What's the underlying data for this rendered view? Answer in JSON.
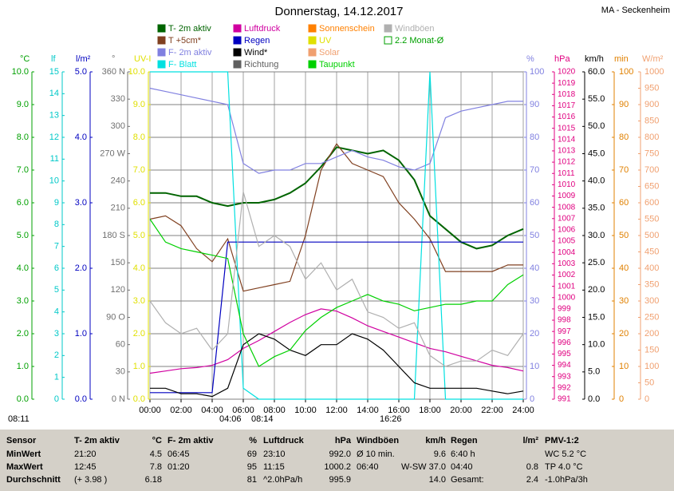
{
  "header": {
    "title": "Donnerstag, 14.12.2017",
    "station": "MA - Seckenheim"
  },
  "chart_data": {
    "type": "line",
    "x": [
      0,
      1,
      2,
      3,
      4,
      5,
      6,
      7,
      8,
      9,
      10,
      11,
      12,
      13,
      14,
      15,
      16,
      17,
      18,
      19,
      20,
      21,
      22,
      23,
      24
    ],
    "xlim": [
      0,
      24
    ],
    "xticks": [
      {
        "value": 0,
        "label": "00:00"
      },
      {
        "value": 2,
        "label": "02:00"
      },
      {
        "value": 4,
        "label": "04:00"
      },
      {
        "value": 6,
        "label": "06:00"
      },
      {
        "value": 8,
        "label": "08:00"
      },
      {
        "value": 10,
        "label": "10:00"
      },
      {
        "value": 12,
        "label": "12:00"
      },
      {
        "value": 14,
        "label": "14:00"
      },
      {
        "value": 16,
        "label": "16:00"
      },
      {
        "value": 18,
        "label": "18:00"
      },
      {
        "value": 20,
        "label": "20:00"
      },
      {
        "value": 22,
        "label": "22:00"
      },
      {
        "value": 24,
        "label": "24:00"
      }
    ],
    "grid": true,
    "axes": [
      {
        "unit": "°C",
        "color": "#00a000",
        "lim": [
          0,
          10
        ],
        "ticks": [
          {
            "value": 0,
            "label": "0.0"
          },
          {
            "value": 1,
            "label": "1.0"
          },
          {
            "value": 2,
            "label": "2.0"
          },
          {
            "value": 3,
            "label": "3.0"
          },
          {
            "value": 4,
            "label": "4.0"
          },
          {
            "value": 5,
            "label": "5.0"
          },
          {
            "value": 6,
            "label": "6.0"
          },
          {
            "value": 7,
            "label": "7.0"
          },
          {
            "value": 8,
            "label": "8.0"
          },
          {
            "value": 9,
            "label": "9.0"
          },
          {
            "value": 10,
            "label": "10.0"
          }
        ]
      },
      {
        "unit": "lf",
        "color": "#00c8c8",
        "lim": [
          0,
          15
        ],
        "ticks": [
          0,
          1,
          2,
          3,
          4,
          5,
          6,
          7,
          8,
          9,
          10,
          11,
          12,
          13,
          14,
          15
        ]
      },
      {
        "unit": "l/m²",
        "color": "#0000c0",
        "lim": [
          0,
          5
        ],
        "ticks": [
          {
            "value": 0,
            "label": "0.0"
          },
          {
            "value": 1,
            "label": "1.0"
          },
          {
            "value": 2,
            "label": "2.0"
          },
          {
            "value": 3,
            "label": "3.0"
          },
          {
            "value": 4,
            "label": "4.0"
          },
          {
            "value": 5,
            "label": "5.0"
          }
        ]
      },
      {
        "unit": "°",
        "color": "#707070",
        "lim": [
          0,
          360
        ],
        "ticks": [
          {
            "value": 0,
            "label": "0 N"
          },
          30,
          60,
          {
            "value": 90,
            "label": "90 O"
          },
          120,
          150,
          {
            "value": 180,
            "label": "180 S"
          },
          210,
          240,
          {
            "value": 270,
            "label": "270 W"
          },
          300,
          330,
          {
            "value": 360,
            "label": "360 N"
          }
        ]
      },
      {
        "unit": "UV-I",
        "color": "#e0e000",
        "lim": [
          0,
          10
        ],
        "ticks": [
          {
            "value": 0,
            "label": "0.0"
          },
          {
            "value": 1,
            "label": "1.0"
          },
          {
            "value": 2,
            "label": "2.0"
          },
          {
            "value": 3,
            "label": "3.0"
          },
          {
            "value": 4,
            "label": "4.0"
          },
          {
            "value": 5,
            "label": "5.0"
          },
          {
            "value": 6,
            "label": "6.0"
          },
          {
            "value": 7,
            "label": "7.0"
          },
          {
            "value": 8,
            "label": "8.0"
          },
          {
            "value": 9,
            "label": "9.0"
          },
          {
            "value": 10,
            "label": "10.0"
          }
        ]
      },
      {
        "unit": "%",
        "color": "#8080e0",
        "lim": [
          0,
          100
        ],
        "ticks": [
          0,
          10,
          20,
          30,
          40,
          50,
          60,
          70,
          80,
          90,
          100
        ]
      },
      {
        "unit": "hPa",
        "color": "#e00080",
        "lim": [
          991,
          1020
        ],
        "ticks": [
          991,
          992,
          993,
          994,
          995,
          996,
          997,
          998,
          999,
          1000,
          1001,
          1002,
          1003,
          1004,
          1005,
          1006,
          1007,
          1008,
          1009,
          1010,
          1011,
          1012,
          1013,
          1014,
          1015,
          1016,
          1017,
          1018,
          1019,
          1020
        ]
      },
      {
        "unit": "km/h",
        "color": "#000000",
        "lim": [
          0,
          60
        ],
        "ticks": [
          {
            "value": 0,
            "label": "0.0"
          },
          {
            "value": 5,
            "label": "5.0"
          },
          {
            "value": 10,
            "label": "10.0"
          },
          {
            "value": 15,
            "label": "15.0"
          },
          {
            "value": 20,
            "label": "20.0"
          },
          {
            "value": 25,
            "label": "25.0"
          },
          {
            "value": 30,
            "label": "30.0"
          },
          {
            "value": 35,
            "label": "35.0"
          },
          {
            "value": 40,
            "label": "40.0"
          },
          {
            "value": 45,
            "label": "45.0"
          },
          {
            "value": 50,
            "label": "50.0"
          },
          {
            "value": 55,
            "label": "55.0"
          },
          {
            "value": 60,
            "label": "60.0"
          }
        ]
      },
      {
        "unit": "min",
        "color": "#e08000",
        "lim": [
          0,
          100
        ],
        "ticks": [
          0,
          10,
          20,
          30,
          40,
          50,
          60,
          70,
          80,
          90,
          100
        ]
      },
      {
        "unit": "W/m²",
        "color": "#f0a070",
        "lim": [
          0,
          1000
        ],
        "ticks": [
          0,
          50,
          100,
          150,
          200,
          250,
          300,
          350,
          400,
          450,
          500,
          550,
          600,
          650,
          700,
          750,
          800,
          850,
          900,
          950,
          1000
        ]
      }
    ],
    "series": [
      {
        "name": "T- 2m aktiv",
        "color": "#006400",
        "axis": 0,
        "values": [
          6.3,
          6.3,
          6.2,
          6.2,
          6.0,
          5.9,
          6.0,
          6.0,
          6.1,
          6.3,
          6.6,
          7.1,
          7.7,
          7.6,
          7.5,
          7.6,
          7.3,
          6.7,
          5.6,
          5.2,
          4.8,
          4.6,
          4.7,
          5.0,
          5.2
        ]
      },
      {
        "name": "T +5cm*",
        "color": "#804020",
        "axis": 0,
        "values": [
          5.5,
          5.6,
          5.3,
          4.6,
          4.2,
          4.9,
          3.3,
          3.4,
          3.5,
          3.6,
          5.0,
          7.0,
          7.8,
          7.2,
          7.0,
          6.8,
          6.0,
          5.5,
          4.9,
          3.9,
          3.9,
          3.9,
          3.9,
          4.1,
          4.1
        ]
      },
      {
        "name": "F- 2m aktiv",
        "color": "#8080e0",
        "axis": 5,
        "values": [
          95,
          94,
          93,
          92,
          91,
          90,
          72,
          69,
          70,
          70,
          72,
          72,
          74,
          76,
          74,
          73,
          71,
          70,
          72,
          86,
          88,
          89,
          90,
          91,
          91
        ]
      },
      {
        "name": "F- Blatt",
        "color": "#00e0e0",
        "axis": 1,
        "values": [
          15,
          15,
          15,
          15,
          15,
          15,
          0.5,
          0,
          0,
          0,
          0,
          0,
          0,
          0,
          0,
          0,
          0,
          0,
          15,
          0,
          0,
          0,
          0,
          0,
          0
        ]
      },
      {
        "name": "Luftdruck",
        "color": "#d000a0",
        "axis": 6,
        "values": [
          993.3,
          993.5,
          993.7,
          993.8,
          994.0,
          994.5,
          995.5,
          996.2,
          997.0,
          997.8,
          998.5,
          999.0,
          998.8,
          998.2,
          997.5,
          997.0,
          996.5,
          996.0,
          995.5,
          995.2,
          994.8,
          994.4,
          994.0,
          993.8,
          993.5
        ]
      },
      {
        "name": "Regen",
        "color": "#0000c0",
        "axis": 2,
        "values": [
          0.1,
          0.1,
          0.1,
          0.1,
          0.1,
          2.4,
          2.4,
          2.4,
          2.4,
          2.4,
          2.4,
          2.4,
          2.4,
          2.4,
          2.4,
          2.4,
          2.4,
          2.4,
          2.4,
          2.4,
          2.4,
          2.4,
          2.4,
          2.4,
          2.4
        ]
      },
      {
        "name": "Wind*",
        "color": "#000000",
        "axis": 7,
        "values": [
          2,
          2,
          1,
          1,
          0.5,
          2,
          10,
          12,
          11,
          9,
          8,
          10,
          10,
          12,
          11,
          9,
          6,
          3,
          2,
          2,
          2,
          2,
          1.5,
          1,
          1.5
        ]
      },
      {
        "name": "Richtung",
        "color": "#606060"
      },
      {
        "name": "Sonnenschein",
        "color": "#ff8000"
      },
      {
        "name": "UV",
        "color": "#e0e000"
      },
      {
        "name": "Solar",
        "color": "#f0a070"
      },
      {
        "name": "Taupunkt",
        "color": "#00d000",
        "axis": 0,
        "values": [
          5.5,
          4.8,
          4.6,
          4.5,
          4.4,
          4.3,
          2.0,
          1.0,
          1.3,
          1.5,
          2.1,
          2.5,
          2.8,
          3.0,
          3.2,
          3.0,
          2.9,
          2.7,
          2.8,
          2.9,
          2.9,
          3.0,
          3.0,
          3.5,
          3.8
        ]
      },
      {
        "name": "Windböen",
        "color": "#b0b0b0",
        "axis": 7,
        "values": [
          18,
          14,
          12,
          13,
          9,
          12,
          38,
          28,
          30,
          28,
          22,
          25,
          20,
          22,
          16,
          15,
          13,
          14,
          8,
          6,
          7,
          7,
          9,
          8,
          12
        ]
      },
      {
        "name": "2.2 Monat-Ø",
        "color": "#00a000"
      }
    ],
    "annotations": [
      "08:11",
      "04:06",
      "08:14",
      "16:26"
    ]
  },
  "summary": [
    {
      "title": "Sensor",
      "lines": [
        [
          "MinWert",
          null
        ],
        [
          "MaxWert",
          null
        ],
        [
          "Durchschnitt",
          null
        ]
      ]
    },
    {
      "title": "T- 2m aktiv",
      "unit": "°C",
      "lines": [
        [
          "21:20",
          "4.5"
        ],
        [
          "12:45",
          "7.8"
        ],
        [
          "(+ 3.98 )",
          "6.18"
        ]
      ]
    },
    {
      "title": "F- 2m aktiv",
      "unit": "%",
      "lines": [
        [
          "06:45",
          "69"
        ],
        [
          "01:20",
          "95"
        ],
        [
          null,
          "81"
        ]
      ]
    },
    {
      "title": "Luftdruck",
      "unit": "hPa",
      "lines": [
        [
          "23:10",
          "992.0"
        ],
        [
          "11:15",
          "1000.2"
        ],
        [
          "^2.0hPa/h",
          "995.9"
        ]
      ]
    },
    {
      "title": "Windböen",
      "unit": "km/h",
      "lines": [
        [
          "Ø 10 min.",
          "9.6"
        ],
        [
          "06:40",
          "W-SW 37.0"
        ],
        [
          null,
          "14.0"
        ]
      ]
    },
    {
      "title": "Regen",
      "unit": "l/m²",
      "lines": [
        [
          "6:40 h",
          null
        ],
        [
          "04:40",
          "0.8"
        ],
        [
          "Gesamt:",
          "2.4"
        ]
      ]
    },
    {
      "title": "PMV-1:2",
      "lines": [
        [
          "WC 5.2 °C",
          null
        ],
        [
          "TP 4.0 °C",
          null
        ],
        [
          "-1.0hPa/3h",
          null
        ]
      ]
    }
  ]
}
